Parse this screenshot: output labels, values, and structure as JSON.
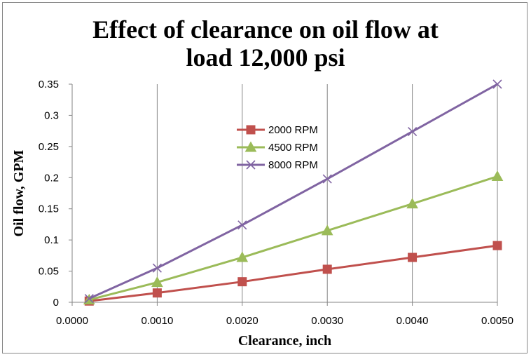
{
  "chart_data": {
    "type": "line",
    "title_lines": [
      "Effect of clearance on oil flow at",
      "load 12,000 psi"
    ],
    "xlabel": "Clearance, inch",
    "ylabel": "Oil flow, GPM",
    "xlim": [
      0.0,
      0.005
    ],
    "ylim": [
      0,
      0.35
    ],
    "x_ticks": [
      0.0,
      0.001,
      0.002,
      0.003,
      0.004,
      0.005
    ],
    "x_tick_labels": [
      "0.0000",
      "0.0010",
      "0.0020",
      "0.0030",
      "0.0040",
      "0.0050"
    ],
    "y_ticks": [
      0,
      0.05,
      0.1,
      0.15,
      0.2,
      0.25,
      0.3,
      0.35
    ],
    "y_tick_labels": [
      "0",
      "0.05",
      "0.1",
      "0.15",
      "0.2",
      "0.25",
      "0.3",
      "0.35"
    ],
    "x": [
      0.0002,
      0.001,
      0.002,
      0.003,
      0.004,
      0.005
    ],
    "grid": "vertical",
    "legend_position": "inside-top-center",
    "series": [
      {
        "name": "2000 RPM",
        "color": "#C0504D",
        "marker": "square",
        "values": [
          0.002,
          0.015,
          0.033,
          0.053,
          0.072,
          0.091
        ]
      },
      {
        "name": "4500 RPM",
        "color": "#9BBB59",
        "marker": "triangle",
        "values": [
          0.004,
          0.032,
          0.072,
          0.115,
          0.158,
          0.202
        ]
      },
      {
        "name": "8000 RPM",
        "color": "#8064A2",
        "marker": "x",
        "values": [
          0.006,
          0.055,
          0.124,
          0.198,
          0.274,
          0.35
        ]
      }
    ]
  }
}
